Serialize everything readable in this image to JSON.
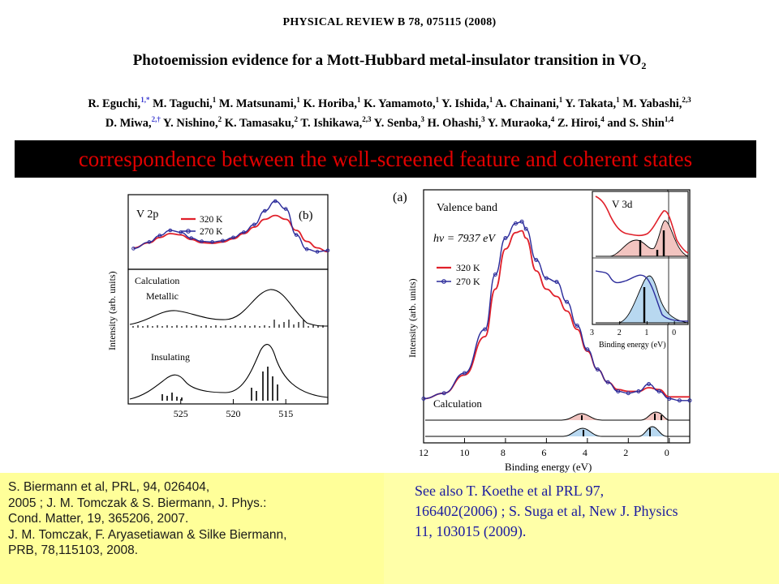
{
  "header": {
    "journal": "PHYSICAL REVIEW B 78, 075115 (2008)",
    "title": "Photoemission evidence for a Mott-Hubbard metal-insulator transition in VO",
    "title_sub": "2",
    "authors_line1": [
      {
        "name": "R. Eguchi,",
        "sup": "1,*"
      },
      {
        "name": " M. Taguchi,",
        "sup": "1"
      },
      {
        "name": " M. Matsunami,",
        "sup": "1"
      },
      {
        "name": " K. Horiba,",
        "sup": "1"
      },
      {
        "name": " K. Yamamoto,",
        "sup": "1"
      },
      {
        "name": " Y. Ishida,",
        "sup": "1"
      },
      {
        "name": " A. Chainani,",
        "sup": "1"
      },
      {
        "name": " Y. Takata,",
        "sup": "1"
      },
      {
        "name": " M. Yabashi,",
        "sup": "2,3"
      }
    ],
    "authors_line2": [
      {
        "name": "D. Miwa,",
        "sup": "2,†"
      },
      {
        "name": " Y. Nishino,",
        "sup": "2"
      },
      {
        "name": " K. Tamasaku,",
        "sup": "2"
      },
      {
        "name": " T. Ishikawa,",
        "sup": "2,3"
      },
      {
        "name": " Y. Senba,",
        "sup": "3"
      },
      {
        "name": " H. Ohashi,",
        "sup": "3"
      },
      {
        "name": " Y. Muraoka,",
        "sup": "4"
      },
      {
        "name": " Z. Hiroi,",
        "sup": "4"
      },
      {
        "name": " and S. Shin",
        "sup": "1,4"
      }
    ]
  },
  "banner": "correspondence between the well-screened feature and coherent states",
  "colors": {
    "red": "#e0202a",
    "blue": "#2a2a9a",
    "banner_bg": "#000000",
    "banner_text": "#e00000",
    "ref_bg": "#ffff99",
    "ref_right_text": "#1a1aa0",
    "fill_red": "#f2c4c0",
    "fill_blue": "#b8d8f0"
  },
  "chart_data": [
    {
      "type": "line",
      "panel_label": "(b)",
      "panel_title": "V 2p",
      "ylabel": "Intensity (arb. units)",
      "x_ticks": [
        "525",
        "520",
        "515"
      ],
      "xlim": [
        530,
        511
      ],
      "legend": [
        "320 K",
        "270 K"
      ],
      "sublabels": [
        "Calculation",
        "Metallic",
        "Insulating"
      ],
      "series": [
        {
          "name": "320 K",
          "x": [
            529.5,
            528,
            527,
            526,
            525,
            524,
            523,
            522,
            521,
            520,
            519,
            518,
            517,
            516,
            515,
            514,
            513,
            512,
            511
          ],
          "values": [
            0.28,
            0.36,
            0.44,
            0.5,
            0.48,
            0.41,
            0.36,
            0.35,
            0.37,
            0.42,
            0.5,
            0.6,
            0.72,
            0.78,
            0.72,
            0.55,
            0.38,
            0.28,
            0.22
          ]
        },
        {
          "name": "270 K",
          "x": [
            529.5,
            528,
            527,
            526,
            525,
            524,
            523,
            522,
            521,
            520,
            519,
            518,
            517,
            516,
            515,
            514,
            513,
            512,
            511
          ],
          "values": [
            0.27,
            0.37,
            0.47,
            0.55,
            0.52,
            0.43,
            0.38,
            0.37,
            0.39,
            0.44,
            0.52,
            0.64,
            0.85,
            1.0,
            0.88,
            0.48,
            0.26,
            0.22,
            0.24
          ]
        }
      ]
    },
    {
      "type": "line",
      "panel_label": "(a)",
      "panel_title": "Valence band",
      "annotation": "hν = 7937 eV",
      "xlabel": "Binding energy (eV)",
      "ylabel": "Intensity (arb. units)",
      "x_ticks": [
        "12",
        "10",
        "8",
        "6",
        "4",
        "2",
        "0"
      ],
      "xlim": [
        12,
        -1
      ],
      "legend": [
        "320 K",
        "270 K"
      ],
      "sublabel": "Calculation",
      "series": [
        {
          "name": "320 K",
          "x": [
            12,
            11,
            10,
            9,
            8.5,
            8,
            7.5,
            7.2,
            7,
            6.5,
            6,
            5.5,
            5,
            4.5,
            4,
            3.5,
            3,
            2.5,
            2,
            1.5,
            1,
            0.5,
            0,
            -0.5,
            -1
          ],
          "values": [
            0.02,
            0.05,
            0.15,
            0.36,
            0.62,
            0.84,
            0.93,
            0.94,
            0.9,
            0.72,
            0.62,
            0.58,
            0.5,
            0.4,
            0.28,
            0.18,
            0.11,
            0.07,
            0.06,
            0.06,
            0.08,
            0.07,
            0.03,
            0.03,
            0.03
          ]
        },
        {
          "name": "270 K",
          "x": [
            12,
            11,
            10,
            9,
            8.5,
            8,
            7.5,
            7.2,
            7,
            6.5,
            6,
            5.5,
            5,
            4.5,
            4,
            3.5,
            3,
            2.5,
            2,
            1.5,
            1,
            0.5,
            0,
            -0.5,
            -1
          ],
          "values": [
            0.02,
            0.05,
            0.16,
            0.4,
            0.7,
            0.9,
            0.98,
            0.99,
            0.95,
            0.78,
            0.68,
            0.66,
            0.55,
            0.42,
            0.29,
            0.18,
            0.11,
            0.06,
            0.05,
            0.06,
            0.1,
            0.06,
            0.02,
            0.01,
            0.01
          ]
        }
      ]
    },
    {
      "type": "line",
      "panel_title": "V 3d",
      "xlabel": "Binding energy (eV)",
      "x_ticks": [
        "3",
        "2",
        "1",
        "0"
      ],
      "xlim": [
        3,
        -0.5
      ]
    }
  ],
  "refs_left": [
    "S. Biermann et al, PRL, 94, 026404,",
    "2005 ; J. M. Tomczak & S. Biermann, J. Phys.:",
    "Cond. Matter, 19, 365206, 2007.",
    "J. M. Tomczak, F. Aryasetiawan & Silke Biermann,",
    "PRB, 78,115103, 2008."
  ],
  "refs_right": [
    "See also T. Koethe et al PRL 97,",
    "166402(2006) ; S. Suga et al, New J. Physics",
    "11, 103015 (2009)."
  ]
}
